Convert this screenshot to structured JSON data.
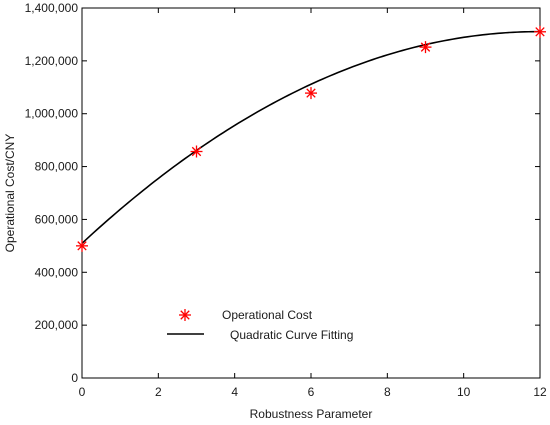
{
  "chart_data": {
    "type": "scatter",
    "xlabel": "Robustness Parameter",
    "ylabel": "Operational Cost/CNY",
    "xlim": [
      0,
      12
    ],
    "ylim": [
      0,
      1400000
    ],
    "x_ticks": [
      0,
      2,
      4,
      6,
      8,
      10,
      12
    ],
    "x_tick_labels": [
      "0",
      "2",
      "4",
      "6",
      "8",
      "10",
      "12"
    ],
    "y_ticks": [
      0,
      200000,
      400000,
      600000,
      800000,
      1000000,
      1200000,
      1400000
    ],
    "y_tick_labels": [
      "0",
      "200,000",
      "400,000",
      "600,000",
      "800,000",
      "1,000,000",
      "1,200,000",
      "1,400,000"
    ],
    "grid": false,
    "legend_position": "bottom-left",
    "series": [
      {
        "name": "Operational Cost",
        "kind": "scatter",
        "marker": "asterisk",
        "color": "#ff0000",
        "x": [
          0,
          3,
          6,
          9,
          12
        ],
        "y": [
          500000,
          857000,
          1078000,
          1252000,
          1310000
        ]
      },
      {
        "name": "Quadratic Curve Fitting",
        "kind": "line",
        "color": "#000000",
        "equation": "y = -5595.24*x^2 + 133885.7*x + 509600",
        "coefficients": {
          "a": -5595.24,
          "b": 133885.7,
          "c": 509600
        },
        "x_range": [
          0,
          12
        ]
      }
    ]
  }
}
